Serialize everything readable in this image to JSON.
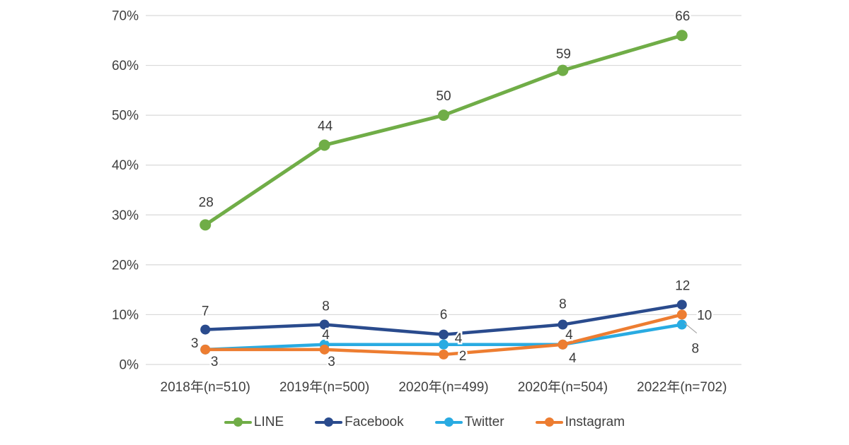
{
  "chart_data": {
    "type": "line",
    "title": "",
    "xlabel": "",
    "ylabel": "",
    "categories": [
      "2018年(n=510)",
      "2019年(n=500)",
      "2020年(n=499)",
      "2020年(n=504)",
      "2022年(n=702)"
    ],
    "series": [
      {
        "name": "LINE",
        "color": "#70AD47",
        "values": [
          28,
          44,
          50,
          59,
          66
        ]
      },
      {
        "name": "Facebook",
        "color": "#2A4B8D",
        "values": [
          7,
          8,
          6,
          8,
          12
        ]
      },
      {
        "name": "Twitter",
        "color": "#29ABE2",
        "values": [
          3,
          4,
          4,
          4,
          8
        ]
      },
      {
        "name": "Instagram",
        "color": "#ED7D31",
        "values": [
          3,
          3,
          2,
          4,
          10
        ]
      }
    ],
    "ylim": [
      0,
      70
    ],
    "ytick_step": 10,
    "ytick_labels": [
      "0%",
      "10%",
      "20%",
      "30%",
      "40%",
      "50%",
      "60%",
      "70%"
    ],
    "grid": "horizontal",
    "gridline_color": "#D9D9D9",
    "axis_text_color": "#404040",
    "data_label_color": "#3B3B3B",
    "leader_line_color": "#A6A6A6",
    "legend_position": "bottom",
    "data_labels": true,
    "label_offsets": {
      "LINE": [
        [
          1,
          -26
        ],
        [
          1,
          -21
        ],
        [
          0,
          -21
        ],
        [
          1,
          -17
        ],
        [
          1,
          -21
        ]
      ],
      "Facebook": [
        [
          0,
          -20
        ],
        [
          2,
          -20
        ],
        [
          0,
          -22
        ],
        [
          0,
          -23
        ],
        [
          1,
          -21
        ]
      ],
      "Twitter": [
        [
          -15,
          -3
        ],
        [
          2,
          -8
        ],
        [
          21,
          -3
        ],
        [
          9,
          -8
        ],
        [
          19,
          40
        ]
      ],
      "Instagram": [
        [
          13,
          23
        ],
        [
          10,
          23
        ],
        [
          27,
          8
        ],
        [
          14,
          25
        ],
        [
          32,
          7
        ]
      ]
    },
    "leader_lines": [
      {
        "series": "Twitter",
        "point": 4,
        "x1_off": 4,
        "y1_off": -2,
        "x2_off": 21,
        "y2_off": 12
      }
    ]
  }
}
